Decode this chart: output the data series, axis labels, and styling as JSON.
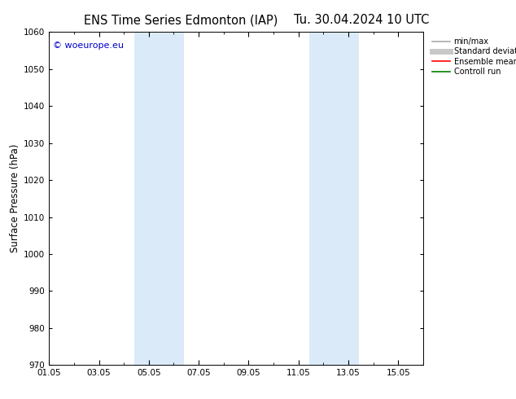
{
  "title1": "ENS Time Series Edmonton (IAP)",
  "title2": "Tu. 30.04.2024 10 UTC",
  "ylabel": "Surface Pressure (hPa)",
  "ylim": [
    970,
    1060
  ],
  "yticks": [
    970,
    980,
    990,
    1000,
    1010,
    1020,
    1030,
    1040,
    1050,
    1060
  ],
  "xlim": [
    0,
    15
  ],
  "xtick_labels": [
    "01.05",
    "03.05",
    "05.05",
    "07.05",
    "09.05",
    "11.05",
    "13.05",
    "15.05"
  ],
  "xtick_positions": [
    0,
    2,
    4,
    6,
    8,
    10,
    12,
    14
  ],
  "shaded_bands": [
    {
      "x_start": 3.42,
      "x_end": 5.42
    },
    {
      "x_start": 10.42,
      "x_end": 12.42
    }
  ],
  "shade_color": "#daeaf8",
  "background_color": "#ffffff",
  "watermark_text": "© woeurope.eu",
  "watermark_color": "#0000cc",
  "legend_items": [
    {
      "label": "min/max",
      "color": "#aaaaaa",
      "lw": 1.2
    },
    {
      "label": "Standard deviation",
      "color": "#c8c8c8",
      "lw": 5
    },
    {
      "label": "Ensemble mean run",
      "color": "#ff0000",
      "lw": 1.2
    },
    {
      "label": "Controll run",
      "color": "#008000",
      "lw": 1.2
    }
  ],
  "title_fontsize": 10.5,
  "tick_label_fontsize": 7.5,
  "ylabel_fontsize": 8.5,
  "watermark_fontsize": 8,
  "legend_fontsize": 7
}
